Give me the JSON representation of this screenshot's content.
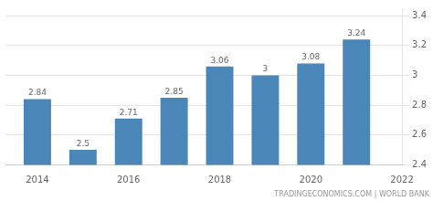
{
  "chart_data": {
    "type": "bar",
    "x": [
      2014,
      2015,
      2016,
      2017,
      2018,
      2019,
      2020,
      2021
    ],
    "values": [
      2.84,
      2.5,
      2.71,
      2.85,
      3.06,
      3.0,
      3.08,
      3.24
    ],
    "color": "#4a86b8",
    "xlim": [
      2013.3,
      2022.0
    ],
    "xticks": [
      2014,
      2016,
      2018,
      2020,
      2022
    ],
    "ylim": [
      2.4,
      3.45
    ],
    "yticks": [
      2.4,
      2.6,
      2.8,
      3.0,
      3.2,
      3.4
    ],
    "grid": true,
    "data_labels": true,
    "annotations": [
      "TRADINGECONOMICS.COM | WORLD BANK"
    ]
  }
}
